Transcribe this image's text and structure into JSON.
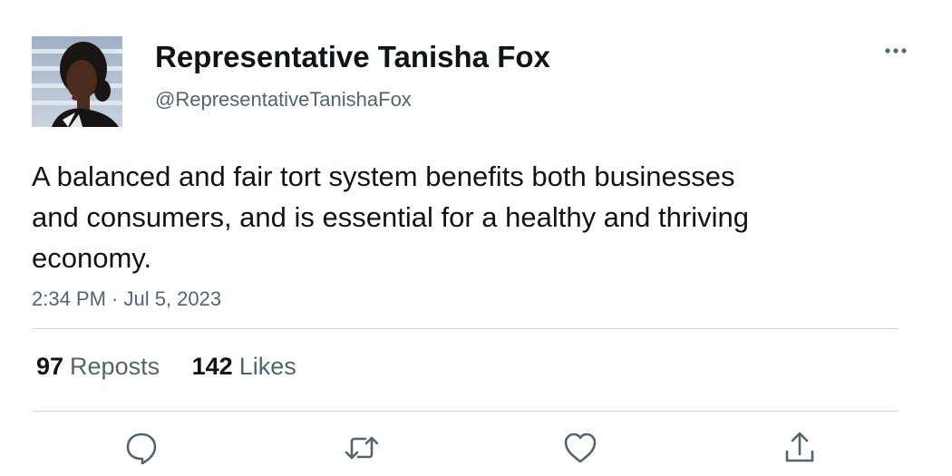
{
  "author": {
    "display_name": "Representative Tanisha Fox",
    "handle": "@RepresentativeTanishaFox",
    "avatar_icon": "profile-photo"
  },
  "tweet": {
    "text": "A balanced and fair tort system benefits both businesses and consumers, and is essential for a healthy and thriving economy.",
    "timestamp": "2:34 PM · Jul 5, 2023"
  },
  "stats": {
    "reposts_count": "97",
    "reposts_label": "Reposts",
    "likes_count": "142",
    "likes_label": "Likes"
  },
  "actions": {
    "more_icon": "more-horizontal-icon",
    "reply_icon": "reply-icon",
    "repost_icon": "repost-icon",
    "like_icon": "heart-icon",
    "share_icon": "share-icon"
  },
  "colors": {
    "text_primary": "#0f1419",
    "text_secondary": "#536471",
    "divider": "#cfd9de"
  }
}
